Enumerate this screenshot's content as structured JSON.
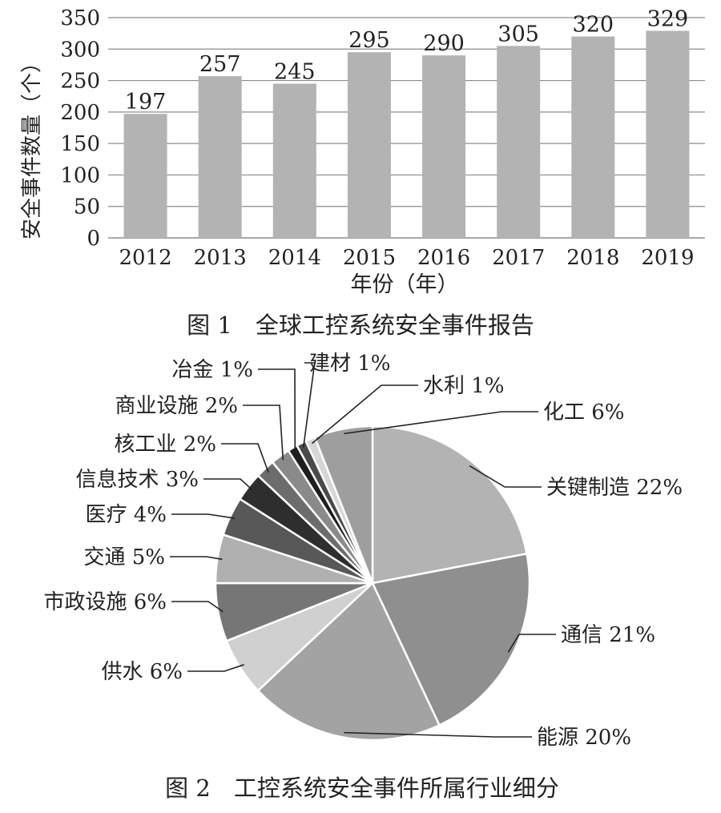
{
  "chart_data": [
    {
      "type": "bar",
      "caption": "图 1　全球工控系统安全事件报告",
      "categories": [
        "2012",
        "2013",
        "2014",
        "2015",
        "2016",
        "2017",
        "2018",
        "2019"
      ],
      "values": [
        197,
        257,
        245,
        295,
        290,
        305,
        320,
        329
      ],
      "xlabel": "年份（年）",
      "ylabel": "安全事件数量（个）",
      "ylim": [
        0,
        350
      ],
      "yticks": [
        0,
        50,
        100,
        150,
        200,
        250,
        300,
        350
      ],
      "grid": true,
      "bar_color": "#b3b3b3",
      "grid_color": "#8c8c8c"
    },
    {
      "type": "pie",
      "caption": "图 2　工控系统安全事件所属行业细分",
      "slices": [
        {
          "label": "关键制造 22%",
          "value": 22,
          "color": "#b3b3b3"
        },
        {
          "label": "通信 21%",
          "value": 21,
          "color": "#8f8f8f"
        },
        {
          "label": "能源 20%",
          "value": 20,
          "color": "#a3a3a3"
        },
        {
          "label": "供水 6%",
          "value": 6,
          "color": "#d0d0d0"
        },
        {
          "label": "市政设施 6%",
          "value": 6,
          "color": "#767676"
        },
        {
          "label": "交通 5%",
          "value": 5,
          "color": "#b0b0b0"
        },
        {
          "label": "医疗 4%",
          "value": 4,
          "color": "#585858"
        },
        {
          "label": "信息技术 3%",
          "value": 3,
          "color": "#2e2e2e"
        },
        {
          "label": "核工业 2%",
          "value": 2,
          "color": "#6c6c6c"
        },
        {
          "label": "商业设施 2%",
          "value": 2,
          "color": "#8a8a8a"
        },
        {
          "label": "冶金 1%",
          "value": 1,
          "color": "#1e1e1e"
        },
        {
          "label": "建材 1%",
          "value": 1,
          "color": "#4a4a4a"
        },
        {
          "label": "水利 1%",
          "value": 1,
          "color": "#d6d6d6"
        },
        {
          "label": "化工 6%",
          "value": 6,
          "color": "#9e9e9e"
        }
      ]
    }
  ]
}
